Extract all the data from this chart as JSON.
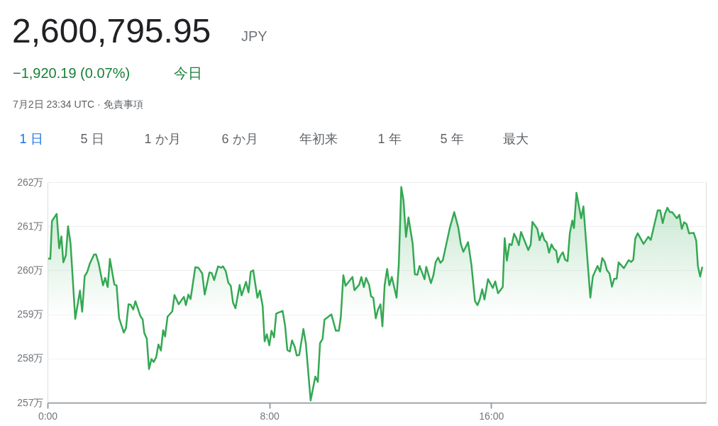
{
  "chart_data": {
    "type": "area",
    "title": "2,600,795.95",
    "annotations": [
      "JPY",
      "−1,920.19 (0.07%)",
      "今日",
      "7月2日 23:34 UTC · 免責事項",
      "1 日",
      "5 日",
      "1 か月",
      "6 か月",
      "年初来",
      "1 年",
      "5 年",
      "最大"
    ],
    "xlim": [
      0,
      23.75
    ],
    "xticks": [
      {
        "value": 0,
        "label": "0:00"
      },
      {
        "value": 8,
        "label": "8:00"
      },
      {
        "value": 16,
        "label": "16:00"
      }
    ],
    "ylim": [
      257,
      262
    ],
    "yticks": [
      {
        "value": 257,
        "label": "257万"
      },
      {
        "value": 258,
        "label": "258万"
      },
      {
        "value": 259,
        "label": "259万"
      },
      {
        "value": 260,
        "label": "260万"
      },
      {
        "value": 261,
        "label": "261万"
      },
      {
        "value": 262,
        "label": "262万"
      }
    ],
    "grid": "y",
    "series": [
      {
        "color": "#34a853",
        "x": [
          0.02,
          0.1,
          0.16,
          0.33,
          0.42,
          0.5,
          0.57,
          0.66,
          0.74,
          0.83,
          1.0,
          1.17,
          1.25,
          1.34,
          1.43,
          1.53,
          1.68,
          1.75,
          1.84,
          2.0,
          2.08,
          2.17,
          2.25,
          2.41,
          2.49,
          2.58,
          2.75,
          2.83,
          2.92,
          3.0,
          3.09,
          3.17,
          3.35,
          3.43,
          3.49,
          3.58,
          3.66,
          3.75,
          3.83,
          3.92,
          4.0,
          4.09,
          4.17,
          4.24,
          4.33,
          4.5,
          4.58,
          4.73,
          4.92,
          4.99,
          5.08,
          5.16,
          5.33,
          5.44,
          5.58,
          5.67,
          5.84,
          5.92,
          6.01,
          6.15,
          6.26,
          6.33,
          6.43,
          6.52,
          6.61,
          6.69,
          6.78,
          6.93,
          7.0,
          7.16,
          7.25,
          7.33,
          7.42,
          7.57,
          7.66,
          7.76,
          7.83,
          7.91,
          8.0,
          8.08,
          8.17,
          8.25,
          8.48,
          8.57,
          8.65,
          8.74,
          8.82,
          8.91,
          8.99,
          9.08,
          9.23,
          9.32,
          9.49,
          9.66,
          9.75,
          9.83,
          9.92,
          9.99,
          10.24,
          10.4,
          10.51,
          10.58,
          10.67,
          10.75,
          11.0,
          11.07,
          11.24,
          11.32,
          11.41,
          11.49,
          11.6,
          11.67,
          11.75,
          11.84,
          11.92,
          12.01,
          12.08,
          12.16,
          12.25,
          12.33,
          12.42,
          12.59,
          12.67,
          12.76,
          12.84,
          12.93,
          13.02,
          13.17,
          13.25,
          13.34,
          13.42,
          13.6,
          13.66,
          13.83,
          13.92,
          14.0,
          14.09,
          14.17,
          14.26,
          14.51,
          14.67,
          14.82,
          14.91,
          15.0,
          15.17,
          15.29,
          15.42,
          15.51,
          15.59,
          15.68,
          15.76,
          15.89,
          16.06,
          16.15,
          16.25,
          16.42,
          16.49,
          16.57,
          16.66,
          16.74,
          16.83,
          16.91,
          17.0,
          17.08,
          17.34,
          17.43,
          17.49,
          17.67,
          17.75,
          17.84,
          17.92,
          18.01,
          18.09,
          18.18,
          18.26,
          18.35,
          18.41,
          18.5,
          18.59,
          18.67,
          18.76,
          18.84,
          18.93,
          18.99,
          19.08,
          19.25,
          19.33,
          19.58,
          19.67,
          19.84,
          19.93,
          20.01,
          20.1,
          20.18,
          20.27,
          20.36,
          20.44,
          20.53,
          20.6,
          20.79,
          20.96,
          21.05,
          21.13,
          21.2,
          21.29,
          21.5,
          21.67,
          21.76,
          22.01,
          22.1,
          22.19,
          22.27,
          22.36,
          22.45,
          22.53,
          22.7,
          22.79,
          22.88,
          22.96,
          23.05,
          23.14,
          23.31,
          23.4,
          23.46,
          23.54,
          23.62
        ],
        "values": [
          260.27,
          260.26,
          261.12,
          261.28,
          260.5,
          260.77,
          260.18,
          260.34,
          261.0,
          260.61,
          258.9,
          259.54,
          259.06,
          259.87,
          259.96,
          260.16,
          260.36,
          260.36,
          260.17,
          259.66,
          259.83,
          259.62,
          260.26,
          259.68,
          259.66,
          258.92,
          258.59,
          258.69,
          259.23,
          259.22,
          259.11,
          259.3,
          258.96,
          258.89,
          258.58,
          258.45,
          257.76,
          257.99,
          257.92,
          258.03,
          258.32,
          258.18,
          258.64,
          258.5,
          258.95,
          259.07,
          259.44,
          259.23,
          259.4,
          259.21,
          259.45,
          259.35,
          260.07,
          260.06,
          259.93,
          259.45,
          259.95,
          259.94,
          259.78,
          260.09,
          260.06,
          260.09,
          259.98,
          259.72,
          259.65,
          259.27,
          259.14,
          259.67,
          259.43,
          259.74,
          259.5,
          259.97,
          260.0,
          259.38,
          259.54,
          259.19,
          258.39,
          258.55,
          258.3,
          258.63,
          258.48,
          259.02,
          259.08,
          258.74,
          258.19,
          258.16,
          258.41,
          258.28,
          258.07,
          258.08,
          258.67,
          258.33,
          257.05,
          257.59,
          257.47,
          258.35,
          258.44,
          258.88,
          259.0,
          258.63,
          258.63,
          258.95,
          259.89,
          259.65,
          259.85,
          259.55,
          259.67,
          259.85,
          259.62,
          259.83,
          259.67,
          259.41,
          259.38,
          258.91,
          259.11,
          259.23,
          258.73,
          259.66,
          260.03,
          259.66,
          259.85,
          259.38,
          260.13,
          261.89,
          261.59,
          260.76,
          261.2,
          260.61,
          259.91,
          259.9,
          260.1,
          259.8,
          260.08,
          259.71,
          259.89,
          260.19,
          260.29,
          260.17,
          260.23,
          260.96,
          261.32,
          260.96,
          260.59,
          260.42,
          260.64,
          260.13,
          259.3,
          259.21,
          259.34,
          259.57,
          259.34,
          259.8,
          259.6,
          259.75,
          259.48,
          259.62,
          260.73,
          260.22,
          260.6,
          260.57,
          260.83,
          260.73,
          260.57,
          260.87,
          260.46,
          260.59,
          261.1,
          260.94,
          260.68,
          260.85,
          260.69,
          260.63,
          260.4,
          260.59,
          260.49,
          260.44,
          260.18,
          260.33,
          260.41,
          260.24,
          260.21,
          260.84,
          261.13,
          260.96,
          261.76,
          261.18,
          261.45,
          259.38,
          259.86,
          260.1,
          259.97,
          260.28,
          260.19,
          260.0,
          259.93,
          259.63,
          259.81,
          259.81,
          260.18,
          260.05,
          260.23,
          260.19,
          260.24,
          260.72,
          260.84,
          260.6,
          260.76,
          260.69,
          261.36,
          261.36,
          261.07,
          261.28,
          261.42,
          261.32,
          261.32,
          261.18,
          261.26,
          260.94,
          261.09,
          261.05,
          260.84,
          260.85,
          260.67,
          260.1,
          259.86,
          260.08
        ]
      }
    ]
  }
}
